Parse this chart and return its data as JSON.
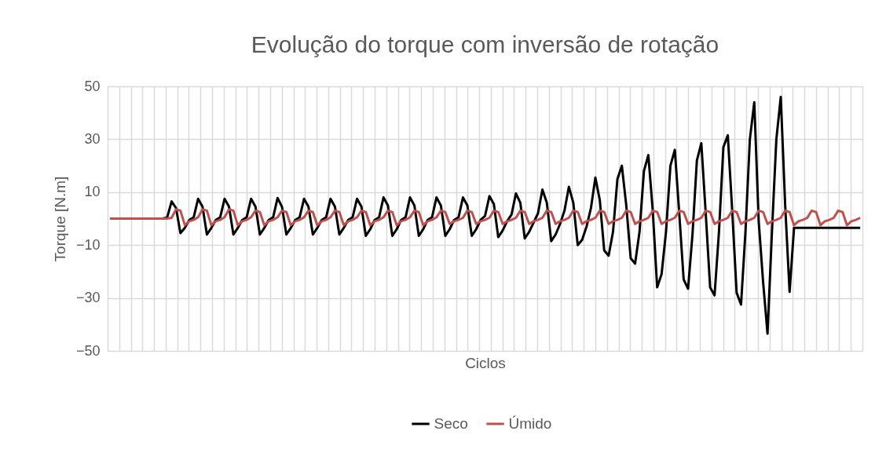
{
  "chart_data": {
    "type": "line",
    "title": "Evolução do torque com inversão de rotação",
    "xlabel": "Ciclos",
    "ylabel": "Torque [N.m]",
    "categories": [
      null,
      null,
      null,
      null,
      null,
      null,
      null,
      null,
      null,
      null,
      null,
      null,
      null,
      null,
      null,
      null,
      null,
      null,
      null,
      null,
      null,
      null,
      null,
      null,
      null,
      null,
      null,
      null,
      null,
      null,
      null,
      null,
      null,
      null,
      null,
      null,
      null,
      null,
      null,
      null,
      null,
      null,
      null,
      null,
      null,
      null,
      null,
      null,
      null,
      null,
      null,
      null,
      null,
      null,
      null,
      null,
      null,
      null,
      null,
      null,
      null,
      null,
      null,
      null,
      null,
      null,
      null,
      null,
      null,
      null,
      null,
      null,
      null,
      null,
      null,
      null,
      null,
      null,
      null,
      null,
      null,
      null,
      null,
      null,
      null,
      null,
      null,
      null,
      null,
      null,
      null,
      null,
      null,
      null,
      null,
      null,
      null,
      null,
      null,
      null,
      null,
      null,
      null,
      null,
      null,
      null,
      null,
      null,
      null,
      null,
      null,
      null,
      null,
      null,
      null,
      null,
      null,
      null,
      null,
      null,
      null,
      null,
      null,
      null,
      null,
      null,
      null,
      null,
      null,
      null,
      null,
      null,
      null,
      null,
      null,
      null,
      null,
      null,
      null,
      null,
      null,
      null,
      null,
      null,
      null,
      null,
      null,
      null,
      null,
      null,
      null,
      null,
      null,
      null,
      null,
      null,
      null,
      null,
      null,
      null,
      null,
      null,
      null,
      null,
      null,
      null,
      null,
      null,
      null,
      null,
      null
    ],
    "series": [
      {
        "name": "Seco",
        "color": "#000000",
        "values": [
          null,
          null,
          null,
          null,
          null,
          null,
          null,
          null,
          null,
          null,
          null,
          null,
          0,
          0.5,
          6.5,
          4,
          -5.5,
          -3.5,
          -0.5,
          0.5,
          7.5,
          4.5,
          -6,
          -3.5,
          -0.5,
          0.5,
          7.5,
          4.5,
          -6,
          -3.5,
          -0.5,
          0.5,
          7.5,
          4.5,
          -6,
          -3.5,
          -0.5,
          0.5,
          7.8,
          4.5,
          -6,
          -3.5,
          -0.5,
          0.5,
          7.5,
          4.5,
          -6,
          -3.5,
          -0.5,
          0.5,
          7.5,
          4.5,
          -6,
          -3.5,
          -0.5,
          0.5,
          7.5,
          4.5,
          -6.5,
          -4,
          -0.5,
          0.5,
          8,
          5,
          -6.5,
          -4,
          -0.5,
          0.5,
          8,
          5,
          -6.5,
          -4,
          -0.5,
          0.5,
          8,
          5,
          -6.5,
          -4,
          -0.5,
          0.5,
          8,
          5,
          -6.5,
          -4,
          -0.5,
          1,
          8.5,
          5.5,
          -7,
          -4.5,
          -1,
          1.5,
          9.5,
          6,
          -7.5,
          -5,
          -1.5,
          2,
          11,
          6,
          -8.5,
          -6,
          -2,
          3,
          12,
          6,
          -10,
          -8,
          -3,
          4,
          15.5,
          7,
          -12,
          -14,
          -5,
          15,
          20,
          5,
          -15,
          -17,
          -5,
          18,
          24,
          3,
          -26,
          -21,
          -5,
          20,
          26,
          2,
          -23,
          -26.5,
          -6,
          22,
          28.5,
          2,
          -26,
          -29,
          -5,
          27,
          31.5,
          3,
          -28,
          -32.5,
          -5,
          30,
          44,
          -1,
          -24,
          -43.5,
          -5,
          30,
          46,
          5,
          -27.7,
          -3.5,
          -3.5,
          -3.5,
          -3.5,
          -3.5,
          -3.5,
          -3.5,
          -3.5,
          -3.5,
          -3.5,
          -3.5,
          -3.5,
          -3.5,
          -3.5,
          -3.5,
          -3.5
        ]
      },
      {
        "name": "Úmido",
        "color": "#c0504d",
        "values": [
          0,
          0,
          0,
          0,
          0,
          0,
          0,
          0,
          0,
          0,
          0,
          0,
          0,
          0,
          0.3,
          3.5,
          3,
          -2.5,
          -1,
          -0.5,
          0.5,
          3.5,
          3,
          -2.5,
          -1,
          -0.5,
          0.5,
          3.5,
          3,
          -2.5,
          -1,
          -0.5,
          0.5,
          3,
          2.5,
          -2.5,
          -1,
          -0.5,
          0.5,
          3,
          2.5,
          -2.5,
          -1,
          -0.5,
          0.5,
          3,
          2.5,
          -2.5,
          -1,
          -0.5,
          0.5,
          3,
          2.5,
          -2.5,
          -1,
          -0.5,
          0.5,
          3,
          2.5,
          -2.5,
          -1,
          -0.5,
          0.5,
          3,
          2.5,
          -2.5,
          -1,
          -0.5,
          0.5,
          3,
          2.5,
          -2.5,
          -1,
          -0.5,
          0.5,
          3,
          2.5,
          -2,
          -1,
          -0.5,
          0.3,
          3,
          2.5,
          -2,
          -1,
          -0.5,
          0.3,
          3,
          2.5,
          -2,
          -1,
          -0.5,
          0.3,
          3,
          2.5,
          -2,
          -1,
          -0.5,
          0.3,
          3,
          2.5,
          -2,
          -1,
          -0.5,
          0.3,
          3,
          2.5,
          -2,
          -1,
          -0.5,
          0.3,
          3,
          2.5,
          -2,
          -1,
          -0.5,
          0.3,
          3,
          2.5,
          -2,
          -1,
          -0.5,
          0.3,
          3,
          2.5,
          -2,
          -1,
          -0.5,
          0.3,
          3,
          2.5,
          -2,
          -1,
          -0.5,
          0.3,
          3,
          2.5,
          -2,
          -1,
          -0.5,
          0.3,
          3,
          2.5,
          -2,
          -1,
          -0.5,
          0.3,
          3,
          2.5,
          -2,
          -1,
          -0.5,
          0.3,
          3,
          2.5,
          -2.5,
          -1,
          -0.5,
          0.3,
          3,
          2.5,
          -2.5,
          -1,
          -0.5,
          0.3,
          3,
          2.5,
          -2.5,
          -1,
          -0.5,
          0.3
        ]
      }
    ],
    "ylim": [
      -50,
      50
    ],
    "yticks": [
      -50,
      -30,
      -10,
      10,
      30,
      50
    ],
    "grid": true,
    "legend": "bottom",
    "tick_labels": "y",
    "line_style": "solid",
    "marker": "none"
  }
}
